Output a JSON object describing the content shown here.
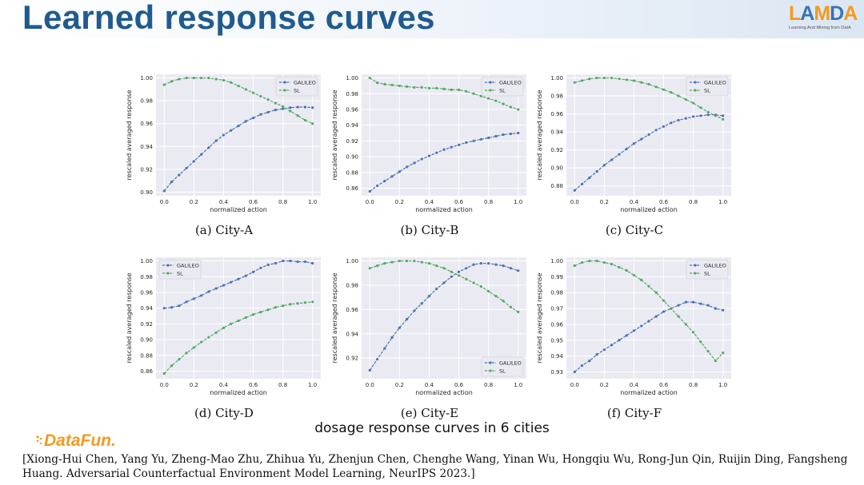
{
  "slide": {
    "title": "Learned response curves",
    "caption": "dosage response curves in 6 cities",
    "citation": "[Xiong-Hui Chen, Yang Yu, Zheng-Mao Zhu, Zhihua Yu, Zhenjun Chen, Chenghe Wang, Yinan Wu, Hongqiu Wu, Rong-Jun Qin, Ruijin Ding, Fangsheng Huang. Adversarial Counterfactual Environment Model Learning, NeurIPS 2023.]",
    "logo_text": "LAMDA",
    "logo_subtitle": "Learning And Mining from DatA",
    "datafun_text": "DataFun."
  },
  "colors": {
    "galileo": "#4c72b0",
    "sl": "#55a868",
    "plot_bg": "#eaeaf2",
    "grid": "#ffffff",
    "title": "#1f5b8f",
    "lamda_orange": "#f39a1e",
    "lamda_blue": "#3a73b5"
  },
  "chart_data": [
    {
      "type": "line",
      "caption": "(a) City-A",
      "xlabel": "normalized action",
      "ylabel": "rescaled averaged response",
      "xlim": [
        0.0,
        1.0
      ],
      "ylim": [
        0.9,
        1.0
      ],
      "xticks": [
        "0.0",
        "0.2",
        "0.4",
        "0.6",
        "0.8",
        "1.0"
      ],
      "yticks": [
        "0.90",
        "0.92",
        "0.94",
        "0.96",
        "0.98",
        "1.00"
      ],
      "legend": "top-right",
      "grid": true,
      "x": [
        0.0,
        0.05,
        0.1,
        0.15,
        0.2,
        0.25,
        0.3,
        0.35,
        0.4,
        0.45,
        0.5,
        0.55,
        0.6,
        0.65,
        0.7,
        0.75,
        0.8,
        0.85,
        0.9,
        0.95,
        1.0
      ],
      "series": [
        {
          "name": "GALILEO",
          "values": [
            0.901,
            0.909,
            0.915,
            0.921,
            0.927,
            0.933,
            0.939,
            0.945,
            0.95,
            0.954,
            0.958,
            0.962,
            0.965,
            0.968,
            0.97,
            0.972,
            0.973,
            0.974,
            0.9745,
            0.9745,
            0.974
          ]
        },
        {
          "name": "SL",
          "values": [
            0.994,
            0.997,
            0.999,
            1.0,
            1.0,
            1.0,
            1.0,
            0.999,
            0.998,
            0.996,
            0.993,
            0.99,
            0.987,
            0.984,
            0.981,
            0.978,
            0.975,
            0.971,
            0.967,
            0.963,
            0.96
          ]
        }
      ]
    },
    {
      "type": "line",
      "caption": "(b) City-B",
      "xlabel": "normalized action",
      "ylabel": "rescaled averaged response",
      "xlim": [
        0.0,
        1.0
      ],
      "ylim": [
        0.855,
        1.0
      ],
      "xticks": [
        "0.0",
        "0.2",
        "0.4",
        "0.6",
        "0.8",
        "1.0"
      ],
      "yticks": [
        "0.86",
        "0.88",
        "0.90",
        "0.92",
        "0.94",
        "0.96",
        "0.98",
        "1.00"
      ],
      "legend": "top-right",
      "grid": true,
      "x": [
        0.0,
        0.05,
        0.1,
        0.15,
        0.2,
        0.25,
        0.3,
        0.35,
        0.4,
        0.45,
        0.5,
        0.55,
        0.6,
        0.65,
        0.7,
        0.75,
        0.8,
        0.85,
        0.9,
        0.95,
        1.0
      ],
      "series": [
        {
          "name": "GALILEO",
          "values": [
            0.856,
            0.863,
            0.869,
            0.875,
            0.881,
            0.887,
            0.892,
            0.897,
            0.901,
            0.905,
            0.909,
            0.912,
            0.915,
            0.918,
            0.92,
            0.922,
            0.924,
            0.926,
            0.928,
            0.929,
            0.93
          ]
        },
        {
          "name": "SL",
          "values": [
            1.0,
            0.994,
            0.992,
            0.991,
            0.99,
            0.989,
            0.988,
            0.988,
            0.987,
            0.987,
            0.986,
            0.985,
            0.985,
            0.983,
            0.98,
            0.977,
            0.974,
            0.971,
            0.967,
            0.963,
            0.96
          ]
        }
      ]
    },
    {
      "type": "line",
      "caption": "(c) City-C",
      "xlabel": "normalized action",
      "ylabel": "rescaled averaged response",
      "xlim": [
        0.0,
        1.0
      ],
      "ylim": [
        0.873,
        1.0
      ],
      "xticks": [
        "0.0",
        "0.2",
        "0.4",
        "0.6",
        "0.8",
        "1.0"
      ],
      "yticks": [
        "0.88",
        "0.90",
        "0.92",
        "0.94",
        "0.96",
        "0.98",
        "1.00"
      ],
      "legend": "top-right",
      "grid": true,
      "x": [
        0.0,
        0.05,
        0.1,
        0.15,
        0.2,
        0.25,
        0.3,
        0.35,
        0.4,
        0.45,
        0.5,
        0.55,
        0.6,
        0.65,
        0.7,
        0.75,
        0.8,
        0.85,
        0.9,
        0.95,
        1.0
      ],
      "series": [
        {
          "name": "GALILEO",
          "values": [
            0.875,
            0.882,
            0.889,
            0.896,
            0.903,
            0.909,
            0.915,
            0.921,
            0.927,
            0.932,
            0.937,
            0.942,
            0.946,
            0.95,
            0.953,
            0.955,
            0.957,
            0.958,
            0.959,
            0.959,
            0.958
          ]
        },
        {
          "name": "SL",
          "values": [
            0.995,
            0.997,
            0.999,
            1.0,
            1.0,
            1.0,
            0.999,
            0.998,
            0.997,
            0.995,
            0.993,
            0.99,
            0.987,
            0.984,
            0.98,
            0.976,
            0.972,
            0.967,
            0.962,
            0.958,
            0.954
          ]
        }
      ]
    },
    {
      "type": "line",
      "caption": "(d) City-D",
      "xlabel": "normalized action",
      "ylabel": "rescaled averaged response",
      "xlim": [
        0.0,
        1.0
      ],
      "ylim": [
        0.855,
        1.0
      ],
      "xticks": [
        "0.0",
        "0.2",
        "0.4",
        "0.6",
        "0.8",
        "1.0"
      ],
      "yticks": [
        "0.86",
        "0.88",
        "0.90",
        "0.92",
        "0.94",
        "0.96",
        "0.98",
        "1.00"
      ],
      "legend": "top-left",
      "grid": true,
      "x": [
        0.0,
        0.05,
        0.1,
        0.15,
        0.2,
        0.25,
        0.3,
        0.35,
        0.4,
        0.45,
        0.5,
        0.55,
        0.6,
        0.65,
        0.7,
        0.75,
        0.8,
        0.85,
        0.9,
        0.95,
        1.0
      ],
      "series": [
        {
          "name": "GALILEO",
          "values": [
            0.94,
            0.941,
            0.943,
            0.948,
            0.952,
            0.956,
            0.961,
            0.965,
            0.969,
            0.973,
            0.977,
            0.981,
            0.986,
            0.991,
            0.995,
            0.997,
            1.0,
            1.0,
            0.999,
            0.999,
            0.997
          ]
        },
        {
          "name": "SL",
          "values": [
            0.857,
            0.867,
            0.875,
            0.883,
            0.89,
            0.897,
            0.903,
            0.909,
            0.915,
            0.92,
            0.924,
            0.928,
            0.932,
            0.935,
            0.938,
            0.941,
            0.943,
            0.945,
            0.946,
            0.947,
            0.948
          ]
        }
      ]
    },
    {
      "type": "line",
      "caption": "(e) City-E",
      "xlabel": "normalized action",
      "ylabel": "rescaled averaged response",
      "xlim": [
        0.0,
        1.0
      ],
      "ylim": [
        0.906,
        1.0
      ],
      "xticks": [
        "0.0",
        "0.2",
        "0.4",
        "0.6",
        "0.8",
        "1.0"
      ],
      "yticks": [
        "0.92",
        "0.94",
        "0.96",
        "0.98",
        "1.00"
      ],
      "legend": "bottom-right",
      "grid": true,
      "x": [
        0.0,
        0.05,
        0.1,
        0.15,
        0.2,
        0.25,
        0.3,
        0.35,
        0.4,
        0.45,
        0.5,
        0.55,
        0.6,
        0.65,
        0.7,
        0.75,
        0.8,
        0.85,
        0.9,
        0.95,
        1.0
      ],
      "series": [
        {
          "name": "GALILEO",
          "values": [
            0.91,
            0.919,
            0.928,
            0.937,
            0.945,
            0.952,
            0.959,
            0.965,
            0.971,
            0.977,
            0.982,
            0.987,
            0.991,
            0.994,
            0.997,
            0.998,
            0.998,
            0.997,
            0.996,
            0.994,
            0.992
          ]
        },
        {
          "name": "SL",
          "values": [
            0.994,
            0.996,
            0.998,
            0.999,
            1.0,
            1.0,
            1.0,
            0.999,
            0.998,
            0.996,
            0.994,
            0.991,
            0.988,
            0.985,
            0.982,
            0.979,
            0.975,
            0.971,
            0.967,
            0.962,
            0.958
          ]
        }
      ]
    },
    {
      "type": "line",
      "caption": "(f) City-F",
      "xlabel": "normalized action",
      "ylabel": "rescaled averaged response",
      "xlim": [
        0.0,
        1.0
      ],
      "ylim": [
        0.928,
        1.0
      ],
      "xticks": [
        "0.0",
        "0.2",
        "0.4",
        "0.6",
        "0.8",
        "1.0"
      ],
      "yticks": [
        "0.93",
        "0.94",
        "0.95",
        "0.96",
        "0.97",
        "0.98",
        "0.99",
        "1.00"
      ],
      "legend": "top-right",
      "grid": true,
      "x": [
        0.0,
        0.05,
        0.1,
        0.15,
        0.2,
        0.25,
        0.3,
        0.35,
        0.4,
        0.45,
        0.5,
        0.55,
        0.6,
        0.65,
        0.7,
        0.75,
        0.8,
        0.85,
        0.9,
        0.95,
        1.0
      ],
      "series": [
        {
          "name": "GALILEO",
          "values": [
            0.93,
            0.934,
            0.937,
            0.941,
            0.944,
            0.947,
            0.95,
            0.953,
            0.956,
            0.959,
            0.962,
            0.965,
            0.968,
            0.97,
            0.972,
            0.974,
            0.974,
            0.973,
            0.972,
            0.97,
            0.969
          ]
        },
        {
          "name": "SL",
          "values": [
            0.997,
            0.999,
            1.0,
            1.0,
            0.999,
            0.998,
            0.996,
            0.994,
            0.991,
            0.988,
            0.984,
            0.98,
            0.975,
            0.97,
            0.965,
            0.96,
            0.955,
            0.949,
            0.943,
            0.937,
            0.942
          ]
        }
      ]
    }
  ]
}
